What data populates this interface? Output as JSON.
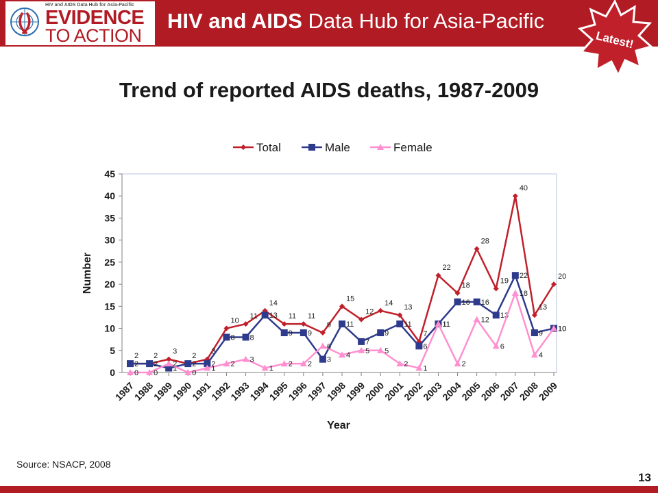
{
  "header": {
    "logo_subtitle": "HIV and AIDS Data Hub for Asia-Pacific",
    "logo_line1": "EVIDENCE",
    "logo_line2": "TO ACTION",
    "hub_title_bold": "HIV and AIDS",
    "hub_title_rest": " Data Hub for Asia-Pacific",
    "badge_text": "Latest!"
  },
  "slide": {
    "title": "Trend of reported AIDS deaths, 1987-2009",
    "source": "Source: NSACP, 2008",
    "page_number": "13"
  },
  "colors": {
    "brand_red": "#b11b24",
    "total": "#c0202a",
    "male": "#2e3a8c",
    "female": "#ff8fd0"
  },
  "chart_data": {
    "type": "line",
    "title": "",
    "xlabel": "Year",
    "ylabel": "Number",
    "ylim": [
      0,
      45
    ],
    "yticks": [
      0,
      5,
      10,
      15,
      20,
      25,
      30,
      35,
      40,
      45
    ],
    "grid": false,
    "legend_position": "top",
    "categories": [
      "1987",
      "1988",
      "1989",
      "1990",
      "1991",
      "1992",
      "1993",
      "1994",
      "1995",
      "1996",
      "1997",
      "1998",
      "1999",
      "2000",
      "2001",
      "2002",
      "2003",
      "2004",
      "2005",
      "2006",
      "2007",
      "2008",
      "2009"
    ],
    "series": [
      {
        "name": "Total",
        "color": "#c0202a",
        "marker": "diamond",
        "values": [
          2,
          2,
          3,
          2,
          3,
          10,
          11,
          14,
          11,
          11,
          9,
          15,
          12,
          14,
          13,
          7,
          22,
          18,
          28,
          19,
          40,
          13,
          20
        ]
      },
      {
        "name": "Male",
        "color": "#2e3a8c",
        "marker": "square",
        "values": [
          2,
          2,
          1,
          2,
          2,
          8,
          8,
          13,
          9,
          9,
          3,
          11,
          7,
          9,
          11,
          6,
          11,
          16,
          16,
          13,
          22,
          9,
          10
        ]
      },
      {
        "name": "Female",
        "color": "#ff8fd0",
        "marker": "triangle",
        "values": [
          0,
          0,
          2,
          0,
          1,
          2,
          3,
          1,
          2,
          2,
          6,
          4,
          5,
          5,
          2,
          1,
          11,
          2,
          12,
          6,
          18,
          4,
          10
        ]
      }
    ]
  }
}
